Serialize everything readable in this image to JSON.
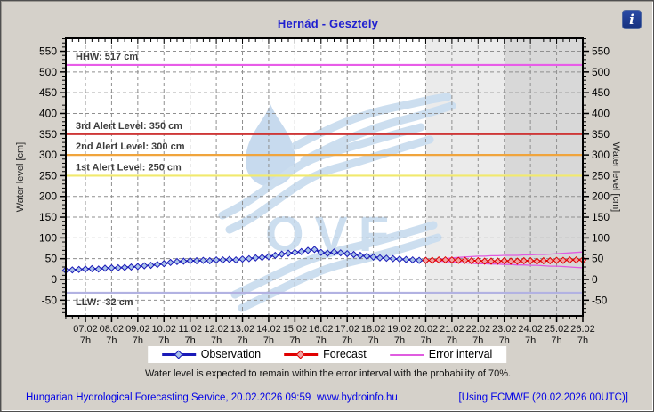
{
  "window": {
    "info_glyph": "i"
  },
  "watermark": {
    "text": "OVF"
  },
  "chart_data": {
    "type": "line",
    "title": "Hernád - Gesztely",
    "ylabel_left": "Water level [cm]",
    "ylabel_right": "Water level [cm]",
    "ylim": [
      -88,
      582
    ],
    "grid": true,
    "legend_position": "bottom",
    "y_ticks": [
      -50,
      0,
      50,
      100,
      150,
      200,
      250,
      300,
      350,
      400,
      450,
      500,
      550
    ],
    "x_tick_labels": [
      "07.02",
      "08.02",
      "09.02",
      "10.02",
      "11.02",
      "12.02",
      "13.02",
      "14.02",
      "15.02",
      "16.02",
      "17.02",
      "18.02",
      "19.02",
      "20.02",
      "21.02",
      "22.02",
      "23.02",
      "24.02",
      "25.02",
      "26.02"
    ],
    "x_tick_sublabel": "7h",
    "time_step_hours": 6,
    "reference_lines": [
      {
        "name": "hhw",
        "label": "HHW: 517 cm",
        "value": 517,
        "color": "#e85ce8",
        "label_position": "above"
      },
      {
        "name": "alert-3rd",
        "label": "3rd Alert Level: 350 cm",
        "value": 350,
        "color": "#ce3737",
        "label_position": "above"
      },
      {
        "name": "alert-2nd",
        "label": "2nd Alert Level: 300 cm",
        "value": 300,
        "color": "#f0a43c",
        "label_position": "above"
      },
      {
        "name": "alert-1st",
        "label": "1st Alert Level: 250 cm",
        "value": 250,
        "color": "#f1e96e",
        "label_position": "above"
      },
      {
        "name": "llw",
        "label": "LLW: -32 cm",
        "value": -32,
        "color": "#b2b2e2",
        "label_position": "below"
      }
    ],
    "regions": [
      {
        "name": "forecast-near",
        "start_day": 13,
        "end_day": 16,
        "color": "#ebebeb"
      },
      {
        "name": "forecast-far",
        "start_day": 16,
        "end_day": 19,
        "color": "#d8d8d8"
      }
    ],
    "series": [
      {
        "name": "Observation",
        "color": "#1a1ab8",
        "marker": "diamond",
        "marker_fill": "#a9c2e8",
        "start_day": -0.75,
        "step_day": 0.25,
        "values": [
          22,
          23,
          24,
          25,
          26,
          25,
          27,
          28,
          28,
          29,
          30,
          31,
          33,
          34,
          36,
          38,
          41,
          43,
          44,
          45,
          45,
          46,
          45,
          47,
          47,
          48,
          47,
          49,
          50,
          52,
          53,
          55,
          58,
          61,
          63,
          65,
          67,
          70,
          72,
          65,
          63,
          66,
          64,
          62,
          60,
          58,
          56,
          54,
          52,
          51,
          50,
          49,
          48,
          47,
          46,
          46
        ]
      },
      {
        "name": "Forecast",
        "color": "#e00000",
        "marker": "diamond",
        "marker_fill": "#f0a2a2",
        "start_day": 13,
        "step_day": 0.25,
        "values": [
          46,
          46,
          47,
          47,
          47,
          46,
          46,
          45,
          45,
          44,
          44,
          44,
          45,
          44,
          44,
          45,
          45,
          44,
          45,
          45,
          46,
          46,
          47,
          47,
          47
        ]
      },
      {
        "name": "Error interval (upper)",
        "color": "#e05ce0",
        "marker": "none",
        "start_day": 13,
        "step_day": 0.25,
        "values": [
          46,
          47,
          48,
          50,
          52,
          53,
          54,
          55,
          56,
          56,
          57,
          57,
          58,
          58,
          58,
          59,
          59,
          60,
          60,
          61,
          62,
          63,
          64,
          65,
          66
        ]
      },
      {
        "name": "Error interval (lower)",
        "color": "#e05ce0",
        "marker": "none",
        "start_day": 13,
        "step_day": 0.25,
        "values": [
          46,
          45,
          44,
          43,
          42,
          41,
          40,
          39,
          38,
          38,
          37,
          37,
          36,
          36,
          35,
          35,
          34,
          34,
          33,
          32,
          32,
          31,
          30,
          29,
          28
        ]
      }
    ]
  },
  "legend": {
    "items": [
      {
        "label": "Observation",
        "color": "#1a1ab8",
        "marker_fill": "#a9c2e8",
        "marker": true
      },
      {
        "label": "Forecast",
        "color": "#e00000",
        "marker_fill": "#f0a2a2",
        "marker": true
      },
      {
        "label": "Error interval",
        "color": "#e05ce0",
        "marker_fill": "",
        "marker": false
      }
    ]
  },
  "note": "Water level is expected to remain within the error interval with the probability of 70%.",
  "footer": {
    "left": "Hungarian Hydrological Forecasting Service, 20.02.2026 09:59",
    "center": "www.hydroinfo.hu",
    "right": "[Using ECMWF (20.02.2026  00UTC)]"
  }
}
